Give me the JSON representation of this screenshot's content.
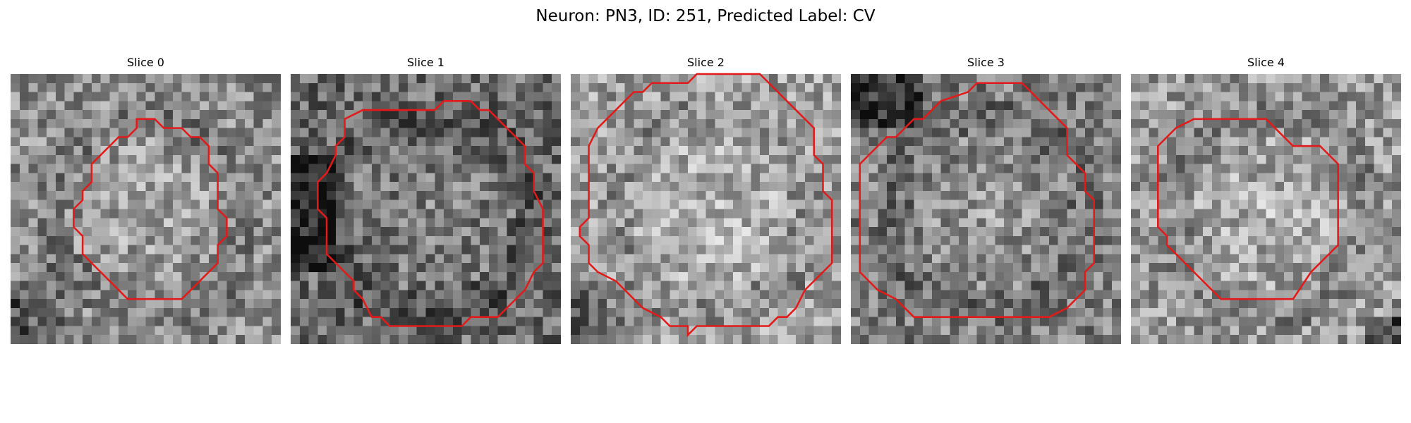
{
  "figure": {
    "title": "Neuron: PN3, ID: 251, Predicted Label: CV"
  },
  "colors": {
    "contour": "#e31a1a",
    "background": "#ffffff"
  },
  "panels": [
    {
      "title": "Slice 0",
      "brightness": 0.55,
      "dark_corner": "bottom-left",
      "contour": [
        [
          14,
          5
        ],
        [
          16,
          5
        ],
        [
          17,
          6
        ],
        [
          19,
          6
        ],
        [
          20,
          7
        ],
        [
          21,
          7
        ],
        [
          22,
          8
        ],
        [
          22,
          10
        ],
        [
          23,
          11
        ],
        [
          23,
          15
        ],
        [
          24,
          16
        ],
        [
          24,
          18
        ],
        [
          23,
          19
        ],
        [
          23,
          21
        ],
        [
          19,
          25
        ],
        [
          13,
          25
        ],
        [
          9,
          21
        ],
        [
          8,
          20
        ],
        [
          8,
          18
        ],
        [
          7,
          17
        ],
        [
          7,
          15
        ],
        [
          8,
          14
        ],
        [
          8,
          13
        ],
        [
          9,
          12
        ],
        [
          9,
          10
        ],
        [
          12,
          7
        ],
        [
          13,
          7
        ],
        [
          14,
          6
        ]
      ]
    },
    {
      "title": "Slice 1",
      "brightness": 0.42,
      "dark_corner": "left",
      "contour": [
        [
          17,
          3
        ],
        [
          20,
          3
        ],
        [
          21,
          4
        ],
        [
          22,
          4
        ],
        [
          24,
          6
        ],
        [
          25,
          7
        ],
        [
          26,
          8
        ],
        [
          26,
          10
        ],
        [
          27,
          11
        ],
        [
          27,
          13
        ],
        [
          28,
          15
        ],
        [
          28,
          21
        ],
        [
          27,
          22
        ],
        [
          26,
          24
        ],
        [
          24,
          26
        ],
        [
          23,
          27
        ],
        [
          20,
          27
        ],
        [
          19,
          28
        ],
        [
          11,
          28
        ],
        [
          10,
          27
        ],
        [
          9,
          27
        ],
        [
          8,
          25
        ],
        [
          7,
          24
        ],
        [
          7,
          23
        ],
        [
          6,
          22
        ],
        [
          4,
          20
        ],
        [
          4,
          16
        ],
        [
          3,
          15
        ],
        [
          3,
          12
        ],
        [
          4,
          11
        ],
        [
          5,
          9
        ],
        [
          5,
          8
        ],
        [
          6,
          7
        ],
        [
          6,
          5
        ],
        [
          8,
          4
        ],
        [
          16,
          4
        ]
      ]
    },
    {
      "title": "Slice 2",
      "brightness": 0.62,
      "dark_corner": "bottom-left",
      "contour": [
        [
          9,
          1
        ],
        [
          13,
          1
        ],
        [
          14,
          0
        ],
        [
          21,
          0
        ],
        [
          22,
          1
        ],
        [
          23,
          2
        ],
        [
          24,
          3
        ],
        [
          25,
          4
        ],
        [
          26,
          5
        ],
        [
          27,
          6
        ],
        [
          27,
          9
        ],
        [
          28,
          10
        ],
        [
          28,
          13
        ],
        [
          29,
          14
        ],
        [
          29,
          21
        ],
        [
          28,
          22
        ],
        [
          27,
          23
        ],
        [
          26,
          24
        ],
        [
          25,
          26
        ],
        [
          24,
          27
        ],
        [
          23,
          27
        ],
        [
          22,
          28
        ],
        [
          14,
          28
        ],
        [
          13,
          29
        ],
        [
          13,
          28
        ],
        [
          11,
          28
        ],
        [
          10,
          27
        ],
        [
          8,
          26
        ],
        [
          6,
          24
        ],
        [
          5,
          23
        ],
        [
          3,
          22
        ],
        [
          2,
          21
        ],
        [
          2,
          19
        ],
        [
          1,
          18
        ],
        [
          1,
          17
        ],
        [
          2,
          16
        ],
        [
          2,
          8
        ],
        [
          3,
          6
        ],
        [
          4,
          5
        ],
        [
          5,
          4
        ],
        [
          7,
          2
        ],
        [
          8,
          2
        ]
      ]
    },
    {
      "title": "Slice 3",
      "brightness": 0.5,
      "dark_corner": "top-left",
      "contour": [
        [
          14,
          1
        ],
        [
          19,
          1
        ],
        [
          20,
          2
        ],
        [
          21,
          3
        ],
        [
          23,
          5
        ],
        [
          24,
          6
        ],
        [
          24,
          9
        ],
        [
          25,
          10
        ],
        [
          26,
          11
        ],
        [
          26,
          13
        ],
        [
          27,
          14
        ],
        [
          27,
          21
        ],
        [
          26,
          22
        ],
        [
          26,
          24
        ],
        [
          24,
          26
        ],
        [
          22,
          27
        ],
        [
          7,
          27
        ],
        [
          6,
          26
        ],
        [
          5,
          25
        ],
        [
          3,
          24
        ],
        [
          2,
          23
        ],
        [
          1,
          22
        ],
        [
          1,
          10
        ],
        [
          2,
          9
        ],
        [
          3,
          8
        ],
        [
          4,
          7
        ],
        [
          5,
          7
        ],
        [
          6,
          6
        ],
        [
          7,
          5
        ],
        [
          8,
          5
        ],
        [
          10,
          3
        ],
        [
          13,
          2
        ]
      ]
    },
    {
      "title": "Slice 4",
      "brightness": 0.6,
      "dark_corner": "bottom-right",
      "contour": [
        [
          7,
          5
        ],
        [
          15,
          5
        ],
        [
          18,
          8
        ],
        [
          21,
          8
        ],
        [
          23,
          10
        ],
        [
          23,
          19
        ],
        [
          20,
          22
        ],
        [
          18,
          25
        ],
        [
          10,
          25
        ],
        [
          6,
          21
        ],
        [
          4,
          19
        ],
        [
          4,
          18
        ],
        [
          3,
          17
        ],
        [
          3,
          8
        ],
        [
          5,
          6
        ]
      ]
    }
  ]
}
